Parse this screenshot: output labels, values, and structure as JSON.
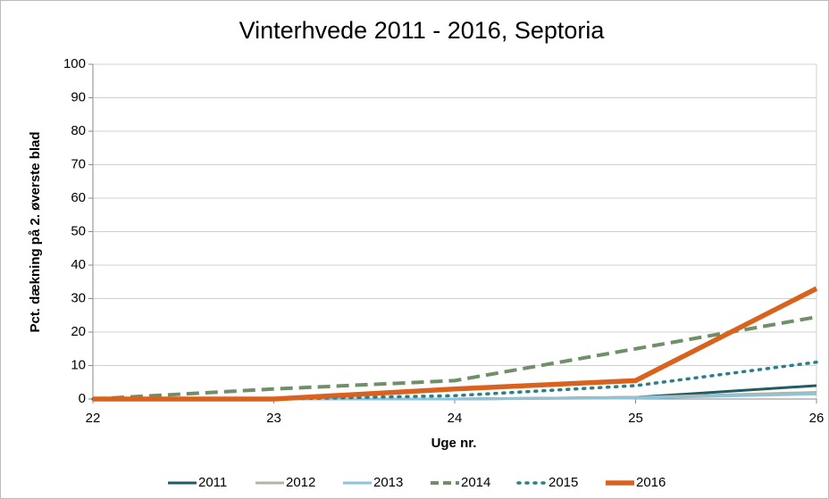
{
  "chart_data": {
    "type": "line",
    "title": "Vinterhvede 2011 - 2016, Septoria",
    "x_label": "Uge nr.",
    "y_label": "Pct. dækning på 2. øverste blad",
    "x": [
      22,
      23,
      24,
      25,
      26
    ],
    "series": [
      {
        "name": "2011",
        "color": "#1f5c63",
        "style": "solid",
        "values": [
          0,
          0,
          0,
          0.5,
          4
        ]
      },
      {
        "name": "2012",
        "color": "#b8b3a0",
        "style": "solid",
        "values": [
          0,
          0,
          0,
          0.5,
          2
        ]
      },
      {
        "name": "2013",
        "color": "#8ec3dc",
        "style": "solid",
        "values": [
          0,
          0,
          0,
          0.3,
          1.5
        ]
      },
      {
        "name": "2014",
        "color": "#6e8f68",
        "style": "dashed",
        "values": [
          0,
          3,
          5.5,
          15,
          24.5
        ]
      },
      {
        "name": "2015",
        "color": "#2c7f8a",
        "style": "dotted",
        "values": [
          0,
          0,
          1,
          4,
          11
        ]
      },
      {
        "name": "2016",
        "color": "#d9621e",
        "style": "bold",
        "values": [
          0,
          0,
          3,
          5.5,
          33
        ]
      }
    ],
    "xlim": [
      22,
      26
    ],
    "xticks": [
      22,
      23,
      24,
      25,
      26
    ],
    "ylim": [
      0,
      100
    ],
    "yticks": [
      0,
      10,
      20,
      30,
      40,
      50,
      60,
      70,
      80,
      90,
      100
    ],
    "grid": true,
    "legend": "bottom"
  }
}
